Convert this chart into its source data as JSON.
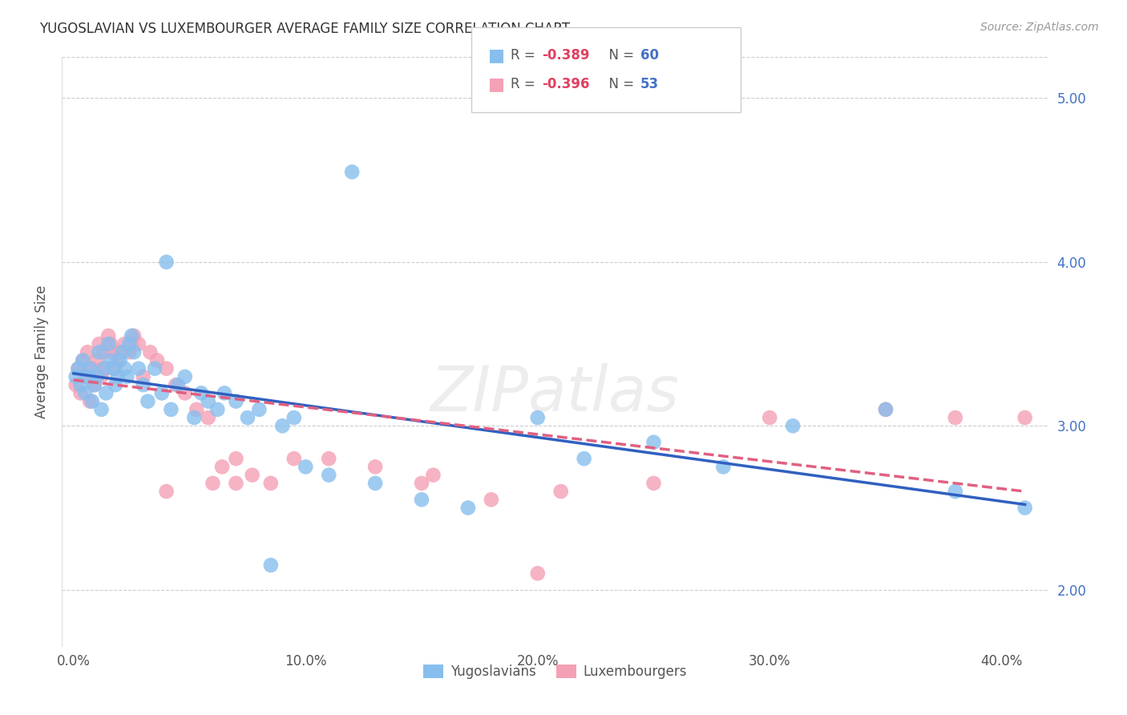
{
  "title": "YUGOSLAVIAN VS LUXEMBOURGER AVERAGE FAMILY SIZE CORRELATION CHART",
  "source": "Source: ZipAtlas.com",
  "ylabel": "Average Family Size",
  "xlabel_ticks": [
    "0.0%",
    "10.0%",
    "20.0%",
    "30.0%",
    "40.0%"
  ],
  "xlabel_vals": [
    0.0,
    0.1,
    0.2,
    0.3,
    0.4
  ],
  "ylabel_ticks": [
    2.0,
    3.0,
    4.0,
    5.0
  ],
  "xlim": [
    -0.005,
    0.42
  ],
  "ylim": [
    1.65,
    5.25
  ],
  "yug_color": "#87BEEE",
  "lux_color": "#F4A0B5",
  "yug_line_color": "#3060C0",
  "lux_line_color": "#E06080",
  "watermark": "ZIPatlas",
  "legend_label_1": "Yugoslavians",
  "legend_label_2": "Luxembourgers",
  "yug_line_x0": 0.0,
  "yug_line_x1": 0.41,
  "yug_line_y0": 3.32,
  "yug_line_y1": 2.52,
  "lux_line_x0": 0.0,
  "lux_line_x1": 0.41,
  "lux_line_y0": 3.28,
  "lux_line_y1": 2.6,
  "yug_x": [
    0.001,
    0.002,
    0.003,
    0.004,
    0.005,
    0.006,
    0.007,
    0.008,
    0.009,
    0.01,
    0.011,
    0.012,
    0.013,
    0.014,
    0.015,
    0.016,
    0.017,
    0.018,
    0.019,
    0.02,
    0.021,
    0.022,
    0.023,
    0.024,
    0.025,
    0.026,
    0.028,
    0.03,
    0.032,
    0.035,
    0.038,
    0.04,
    0.042,
    0.045,
    0.048,
    0.052,
    0.055,
    0.058,
    0.062,
    0.065,
    0.07,
    0.075,
    0.08,
    0.085,
    0.09,
    0.095,
    0.1,
    0.11,
    0.12,
    0.13,
    0.15,
    0.17,
    0.2,
    0.22,
    0.25,
    0.28,
    0.31,
    0.35,
    0.38,
    0.41
  ],
  "yug_y": [
    3.3,
    3.35,
    3.25,
    3.4,
    3.2,
    3.3,
    3.35,
    3.15,
    3.25,
    3.3,
    3.45,
    3.1,
    3.35,
    3.2,
    3.5,
    3.4,
    3.35,
    3.25,
    3.3,
    3.4,
    3.45,
    3.35,
    3.3,
    3.5,
    3.55,
    3.45,
    3.35,
    3.25,
    3.15,
    3.35,
    3.2,
    4.0,
    3.1,
    3.25,
    3.3,
    3.05,
    3.2,
    3.15,
    3.1,
    3.2,
    3.15,
    3.05,
    3.1,
    2.15,
    3.0,
    3.05,
    2.75,
    2.7,
    4.55,
    2.65,
    2.55,
    2.5,
    3.05,
    2.8,
    2.9,
    2.75,
    3.0,
    3.1,
    2.6,
    2.5
  ],
  "lux_x": [
    0.001,
    0.002,
    0.003,
    0.004,
    0.005,
    0.006,
    0.007,
    0.008,
    0.009,
    0.01,
    0.011,
    0.012,
    0.013,
    0.014,
    0.015,
    0.016,
    0.017,
    0.018,
    0.019,
    0.02,
    0.022,
    0.024,
    0.026,
    0.028,
    0.03,
    0.033,
    0.036,
    0.04,
    0.044,
    0.048,
    0.053,
    0.058,
    0.064,
    0.07,
    0.077,
    0.085,
    0.095,
    0.11,
    0.13,
    0.155,
    0.18,
    0.21,
    0.25,
    0.3,
    0.35,
    0.38,
    0.41,
    0.15,
    0.06,
    0.025,
    0.04,
    0.07,
    0.2
  ],
  "lux_y": [
    3.25,
    3.35,
    3.2,
    3.4,
    3.3,
    3.45,
    3.15,
    3.35,
    3.25,
    3.4,
    3.5,
    3.3,
    3.45,
    3.35,
    3.55,
    3.5,
    3.45,
    3.35,
    3.4,
    3.45,
    3.5,
    3.45,
    3.55,
    3.5,
    3.3,
    3.45,
    3.4,
    3.35,
    3.25,
    3.2,
    3.1,
    3.05,
    2.75,
    2.8,
    2.7,
    2.65,
    2.8,
    2.8,
    2.75,
    2.7,
    2.55,
    2.6,
    2.65,
    3.05,
    3.1,
    3.05,
    3.05,
    2.65,
    2.65,
    3.5,
    2.6,
    2.65,
    2.1
  ]
}
